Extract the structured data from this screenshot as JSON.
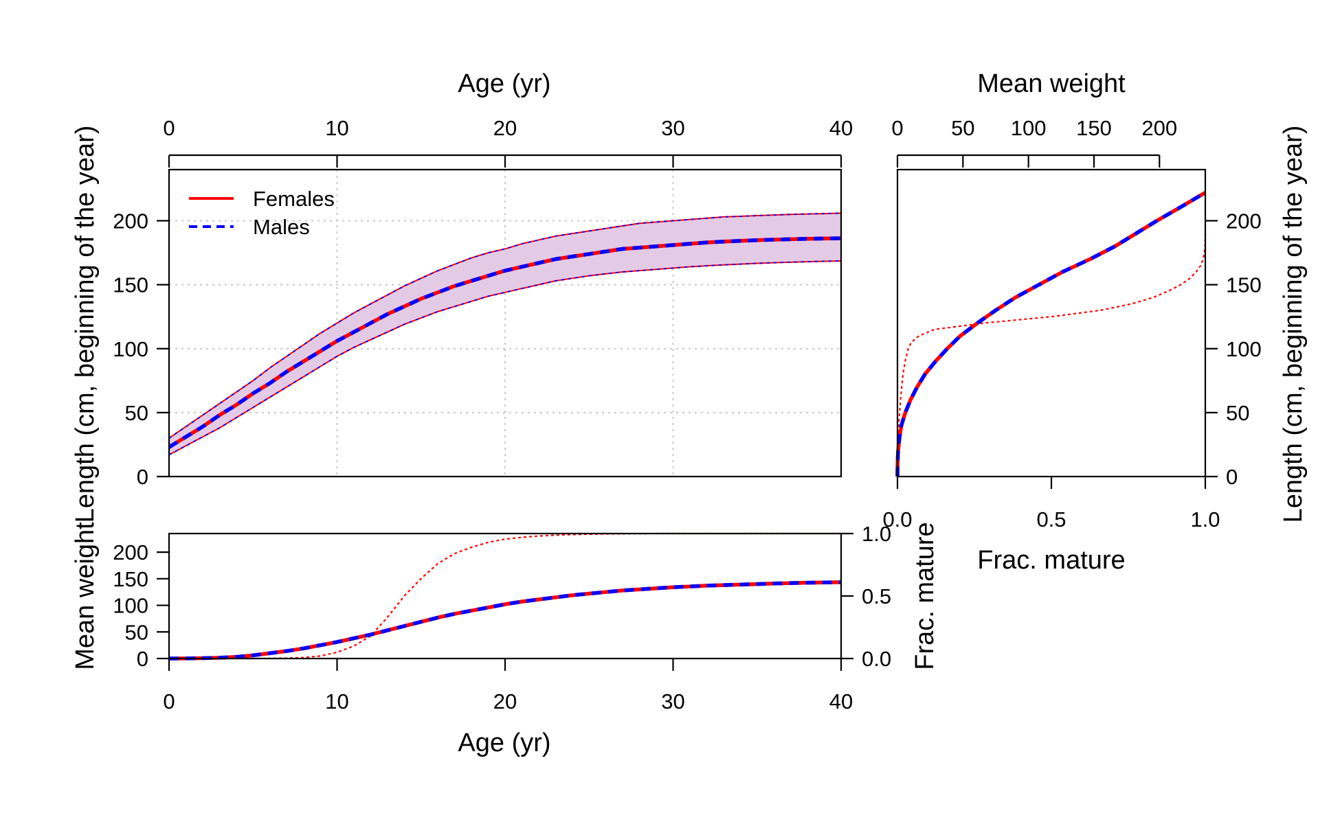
{
  "colors": {
    "females": "#ff0000",
    "males": "#0000ff",
    "ci_band": "#e3cbe6",
    "grid": "#c8c8c8"
  },
  "chart_data": [
    {
      "id": "length_at_age",
      "type": "line",
      "xlabel": "Age (yr)",
      "ylabel": "Length (cm, beginning of the year)",
      "xlim": [
        0,
        40
      ],
      "ylim": [
        0,
        240
      ],
      "xticks": [
        0,
        10,
        20,
        30,
        40
      ],
      "yticks": [
        0,
        50,
        100,
        150,
        200
      ],
      "grid": true,
      "x_axis_position": "top",
      "legend": {
        "position": "top-left",
        "entries": [
          "Females",
          "Males"
        ]
      },
      "x": [
        0,
        1,
        2,
        3,
        4,
        5,
        6,
        7,
        8,
        9,
        10,
        11,
        12,
        13,
        14,
        15,
        16,
        17,
        18,
        19,
        20,
        21,
        22,
        23,
        24,
        25,
        26,
        27,
        28,
        29,
        30,
        31,
        32,
        33,
        34,
        35,
        36,
        37,
        38,
        39,
        40
      ],
      "series": [
        {
          "name": "Females",
          "line": "solid",
          "values": [
            23,
            31,
            39,
            48,
            56,
            65,
            73,
            82,
            90,
            98,
            106,
            113,
            120,
            127,
            133,
            139,
            144,
            149,
            153,
            157,
            161,
            164,
            167,
            170,
            172,
            174,
            176,
            178,
            179,
            180,
            181,
            182,
            183,
            183.7,
            184.3,
            184.8,
            185.2,
            185.6,
            185.9,
            186.1,
            186.3
          ]
        },
        {
          "name": "Males",
          "line": "dashed",
          "values": [
            23,
            31,
            39,
            48,
            56,
            65,
            73,
            82,
            90,
            98,
            106,
            113,
            120,
            127,
            133,
            139,
            144,
            149,
            153,
            157,
            161,
            164,
            167,
            170,
            172,
            174,
            176,
            178,
            179,
            180,
            181,
            182,
            183,
            183.7,
            184.3,
            184.8,
            185.2,
            185.6,
            185.9,
            186.1,
            186.3
          ]
        }
      ],
      "interval": {
        "upper": [
          30,
          39,
          48,
          57,
          66,
          75,
          85,
          94,
          103,
          112,
          120,
          128,
          135,
          142,
          149,
          155,
          161,
          166,
          171,
          175,
          178,
          182,
          185,
          188,
          190,
          192,
          194,
          196,
          198,
          199,
          200,
          201,
          202,
          203,
          203.5,
          204,
          204.5,
          205,
          205.3,
          205.6,
          206
        ],
        "lower": [
          17,
          24,
          31,
          38,
          46,
          54,
          62,
          70,
          78,
          86,
          94,
          101,
          107,
          113,
          119,
          124,
          129,
          133,
          137,
          141,
          144,
          147,
          150,
          153,
          155,
          157,
          158.5,
          160,
          161,
          162,
          163,
          164,
          164.8,
          165.5,
          166.1,
          166.7,
          167.2,
          167.6,
          168,
          168.3,
          168.6
        ]
      }
    },
    {
      "id": "weight_maturity_length",
      "type": "line",
      "top_xlabel": "Mean weight",
      "top_xlim": [
        0,
        235
      ],
      "top_xticks": [
        0,
        50,
        100,
        150,
        200
      ],
      "bottom_xlabel": "Frac. mature",
      "bottom_xlim": [
        0,
        1
      ],
      "bottom_xticks": [
        "0.0",
        "0.5",
        "1.0"
      ],
      "ylabel": "Length (cm, beginning of the year)",
      "ylim": [
        0,
        240
      ],
      "yticks": [
        0,
        50,
        100,
        150,
        200
      ],
      "y_axis_position": "right",
      "weight_by_length": {
        "length": [
          0,
          10,
          20,
          30,
          40,
          50,
          60,
          70,
          80,
          90,
          100,
          110,
          120,
          130,
          140,
          150,
          160,
          170,
          180,
          190,
          200,
          210,
          222
        ],
        "weight": [
          0,
          0.1,
          0.5,
          1.5,
          3,
          6,
          10,
          15,
          21,
          29,
          38,
          48,
          61,
          75,
          90,
          108,
          126,
          147,
          166,
          182,
          198,
          215,
          235
        ],
        "series": [
          "Females",
          "Males"
        ]
      },
      "maturity_by_length": {
        "length": [
          0,
          20,
          40,
          60,
          80,
          90,
          100,
          105,
          110,
          115,
          120,
          125,
          130,
          135,
          140,
          145,
          150,
          155,
          160,
          165,
          170,
          175,
          180,
          190
        ],
        "frac_mature": [
          0,
          0.001,
          0.004,
          0.01,
          0.018,
          0.025,
          0.035,
          0.045,
          0.07,
          0.12,
          0.28,
          0.5,
          0.66,
          0.76,
          0.83,
          0.88,
          0.92,
          0.95,
          0.97,
          0.985,
          0.993,
          0.997,
          0.999,
          1.0
        ],
        "series": "Females"
      }
    },
    {
      "id": "weight_maturity_age",
      "type": "line",
      "xlabel": "Age (yr)",
      "ylabel": "Mean weight",
      "y2label": "Frac. mature",
      "xlim": [
        0,
        40
      ],
      "ylim": [
        0,
        235
      ],
      "y2lim": [
        0,
        1
      ],
      "xticks": [
        0,
        10,
        20,
        30,
        40
      ],
      "yticks": [
        0,
        50,
        100,
        150,
        200
      ],
      "y2ticks": [
        "0.0",
        "0.5",
        "1.0"
      ],
      "x": [
        0,
        1,
        2,
        3,
        4,
        5,
        6,
        7,
        8,
        9,
        10,
        11,
        12,
        13,
        14,
        15,
        16,
        17,
        18,
        19,
        20,
        21,
        22,
        23,
        24,
        25,
        26,
        27,
        28,
        29,
        30,
        31,
        32,
        33,
        34,
        35,
        36,
        37,
        38,
        39,
        40
      ],
      "weight_series": [
        {
          "name": "Females",
          "line": "solid",
          "values": [
            0,
            0.2,
            0.7,
            1.5,
            3,
            6,
            10,
            14,
            19,
            25,
            31,
            38,
            45,
            53,
            61,
            69,
            77,
            84,
            90,
            96,
            102,
            107,
            111,
            115,
            119,
            122,
            125,
            128,
            130,
            132,
            134,
            135.5,
            137,
            138,
            139,
            140,
            141,
            141.8,
            142.5,
            143,
            143.5
          ]
        },
        {
          "name": "Males",
          "line": "dashed",
          "values": [
            0,
            0.2,
            0.7,
            1.5,
            3,
            6,
            10,
            14,
            19,
            25,
            31,
            38,
            45,
            53,
            61,
            69,
            77,
            84,
            90,
            96,
            102,
            107,
            111,
            115,
            119,
            122,
            125,
            128,
            130,
            132,
            134,
            135.5,
            137,
            138,
            139,
            140,
            141,
            141.8,
            142.5,
            143,
            143.5
          ]
        }
      ],
      "maturity_series": {
        "name": "Females",
        "values": [
          0,
          0,
          0,
          0,
          0,
          0,
          0.001,
          0.003,
          0.008,
          0.02,
          0.05,
          0.1,
          0.18,
          0.33,
          0.5,
          0.64,
          0.76,
          0.84,
          0.89,
          0.93,
          0.955,
          0.97,
          0.98,
          0.987,
          0.992,
          0.995,
          0.997,
          0.998,
          0.999,
          1,
          1,
          1,
          1,
          1,
          1,
          1,
          1,
          1,
          1,
          1,
          1
        ]
      }
    }
  ]
}
